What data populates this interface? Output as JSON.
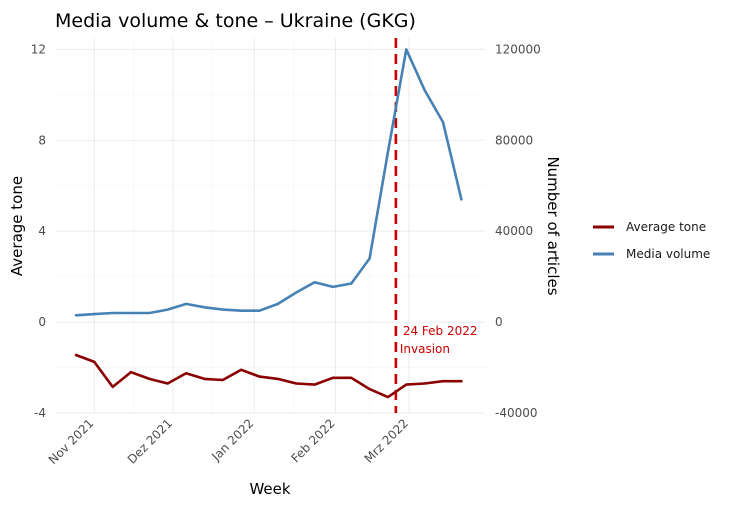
{
  "chart_data": {
    "type": "line",
    "title": "Media volume & tone – Ukraine (GKG)",
    "xlabel": "Week",
    "ylabel_left": "Average tone",
    "ylabel_right": "Number of articles",
    "x_tick_labels": [
      "Nov 2021",
      "Dez 2021",
      "Jan 2022",
      "Feb 2022",
      "Mrz 2022"
    ],
    "y_left": {
      "range": [
        -4,
        12.5
      ],
      "ticks": [
        -4,
        0,
        4,
        8,
        12
      ]
    },
    "y_right": {
      "range": [
        -40000,
        125000
      ],
      "ticks": [
        -40000,
        0,
        40000,
        80000,
        120000
      ]
    },
    "weeks": [
      "2021-10-25",
      "2021-11-01",
      "2021-11-08",
      "2021-11-15",
      "2021-11-22",
      "2021-11-29",
      "2021-12-06",
      "2021-12-13",
      "2021-12-20",
      "2021-12-27",
      "2022-01-03",
      "2022-01-10",
      "2022-01-17",
      "2022-01-24",
      "2022-01-31",
      "2022-02-07",
      "2022-02-14",
      "2022-02-21",
      "2022-02-28",
      "2022-03-07",
      "2022-03-14",
      "2022-03-21"
    ],
    "series": [
      {
        "name": "Average tone",
        "color": "#8b0000",
        "axis": "left",
        "values": [
          -1.45,
          -1.75,
          -2.85,
          -2.2,
          -2.5,
          -2.7,
          -2.25,
          -2.5,
          -2.55,
          -2.1,
          -2.4,
          -2.5,
          -2.7,
          -2.75,
          -2.45,
          -2.45,
          -2.95,
          -3.3,
          -2.75,
          -2.7,
          -2.6,
          -2.6
        ]
      },
      {
        "name": "Media volume",
        "color": "#4682b4",
        "axis": "right",
        "values": [
          3000,
          3500,
          4000,
          4000,
          4000,
          5500,
          8000,
          6500,
          5500,
          5000,
          5000,
          8000,
          13000,
          17500,
          15500,
          17000,
          28000,
          75000,
          120000,
          102000,
          88000,
          54000
        ]
      }
    ],
    "vline": {
      "date": "2022-02-24",
      "color": "#cc0000",
      "labels": [
        "24 Feb 2022",
        "Invasion"
      ]
    },
    "legend": {
      "position": "right",
      "entries": [
        "Average tone",
        "Media volume"
      ]
    },
    "grid": true
  }
}
